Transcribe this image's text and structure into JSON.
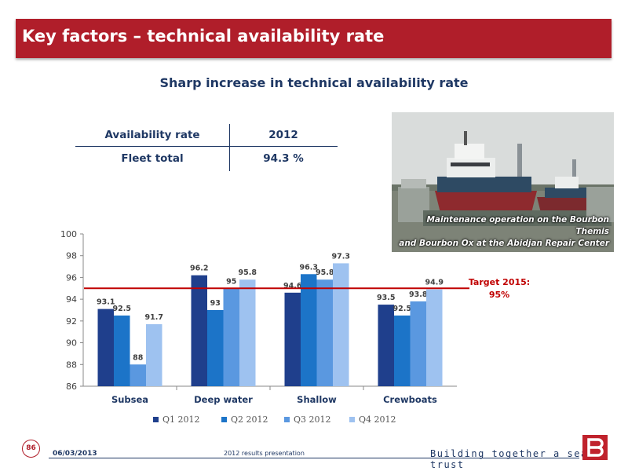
{
  "header": {
    "title": "Key factors – technical availability rate"
  },
  "subtitle": "Sharp increase in technical availability rate",
  "availability_table": {
    "header": [
      "Availability rate",
      "2012"
    ],
    "row": [
      "Fleet total",
      "94.3 %"
    ]
  },
  "photo": {
    "caption_line1": "Maintenance operation on the Bourbon Themis",
    "caption_line2": "and Bourbon Ox at the Abidjan Repair Center"
  },
  "target": {
    "line1": "Target 2015:",
    "line2": "95%",
    "value": 95
  },
  "footer": {
    "page_number": "86",
    "date": "06/03/2013",
    "presentation": "2012 results presentation",
    "tagline": "Building together a sea of trust"
  },
  "colors": {
    "title_bar": "#b01e2a",
    "target_line": "#c00000",
    "text_navy": "#1f3864"
  },
  "chart_data": {
    "type": "bar",
    "categories": [
      "Subsea",
      "Deep water",
      "Shallow",
      "Crewboats"
    ],
    "series": [
      {
        "name": "Q1 2012",
        "color": "#1f3f8c",
        "values": [
          93.1,
          96.2,
          94.6,
          93.5
        ]
      },
      {
        "name": "Q2 2012",
        "color": "#1c74c8",
        "values": [
          92.5,
          93,
          96.3,
          92.5
        ]
      },
      {
        "name": "Q3 2012",
        "color": "#5a98e0",
        "values": [
          88,
          95,
          95.8,
          93.8
        ]
      },
      {
        "name": "Q4 2012",
        "color": "#9ec2f0",
        "values": [
          91.7,
          95.8,
          97.3,
          94.9
        ]
      }
    ],
    "ylim": [
      86,
      100
    ],
    "yticks": [
      86,
      88,
      90,
      92,
      94,
      96,
      98,
      100
    ],
    "grid": false,
    "legend": "bottom",
    "target_line": 95
  }
}
